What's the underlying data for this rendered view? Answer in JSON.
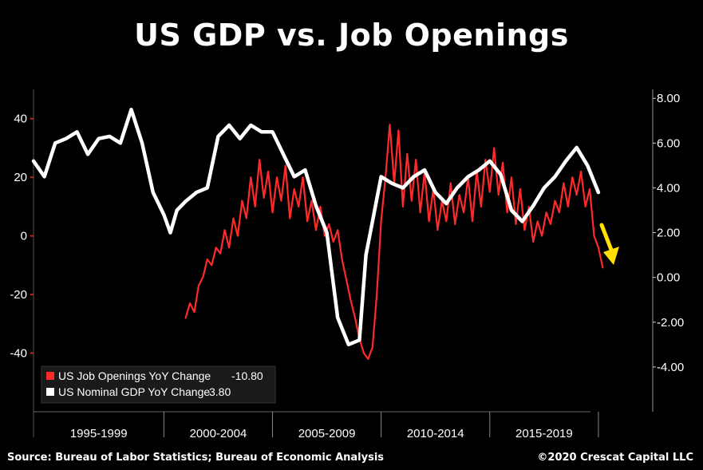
{
  "title": "US GDP vs. Job Openings",
  "footer": {
    "source": "Source: Bureau of Labor Statistics; Bureau of Economic Analysis",
    "copyright": "©2020 Crescat Capital LLC"
  },
  "colors": {
    "background": "#000000",
    "job_openings": "#ff2a2a",
    "gdp": "#ffffff",
    "arrow": "#ffe000"
  },
  "chart_data": {
    "type": "line",
    "title": "US GDP vs. Job Openings",
    "xlabel": "",
    "x_periods": [
      "1995-1999",
      "2000-2004",
      "2005-2009",
      "2010-2014",
      "2015-2019"
    ],
    "xlim": [
      1994.0,
      2022.5
    ],
    "left_axis": {
      "ylim": [
        -60,
        50
      ],
      "ticks": [
        40,
        20,
        0,
        -20,
        -40
      ],
      "tick_labels": [
        "40",
        "20",
        "0",
        "-20",
        "-40"
      ]
    },
    "right_axis": {
      "ylim": [
        -6,
        8.4
      ],
      "ticks": [
        8,
        6,
        4,
        2,
        0,
        -2,
        -4
      ],
      "tick_labels": [
        "8.00",
        "6.00",
        "4.00",
        "2.00",
        "0.00",
        "-2.00",
        "-4.00"
      ]
    },
    "legend_position": "bottom-left",
    "series": [
      {
        "name": "US Job Openings YoY Change",
        "legend_label": "US Job Openings YoY Change",
        "last_value": "-10.80",
        "axis": "left",
        "x": [
          2001.0,
          2001.2,
          2001.4,
          2001.6,
          2001.8,
          2002.0,
          2002.2,
          2002.4,
          2002.6,
          2002.8,
          2003.0,
          2003.2,
          2003.4,
          2003.6,
          2003.8,
          2004.0,
          2004.2,
          2004.4,
          2004.6,
          2004.8,
          2005.0,
          2005.2,
          2005.4,
          2005.6,
          2005.8,
          2006.0,
          2006.2,
          2006.4,
          2006.6,
          2006.8,
          2007.0,
          2007.2,
          2007.4,
          2007.6,
          2007.8,
          2008.0,
          2008.2,
          2008.4,
          2008.6,
          2008.8,
          2009.0,
          2009.2,
          2009.4,
          2009.6,
          2009.8,
          2010.0,
          2010.2,
          2010.4,
          2010.6,
          2010.8,
          2011.0,
          2011.2,
          2011.4,
          2011.6,
          2011.8,
          2012.0,
          2012.2,
          2012.4,
          2012.6,
          2012.8,
          2013.0,
          2013.2,
          2013.4,
          2013.6,
          2013.8,
          2014.0,
          2014.2,
          2014.4,
          2014.6,
          2014.8,
          2015.0,
          2015.2,
          2015.4,
          2015.6,
          2015.8,
          2016.0,
          2016.2,
          2016.4,
          2016.6,
          2016.8,
          2017.0,
          2017.2,
          2017.4,
          2017.6,
          2017.8,
          2018.0,
          2018.2,
          2018.4,
          2018.6,
          2018.8,
          2019.0,
          2019.2,
          2019.4,
          2019.6,
          2019.8,
          2020.0,
          2020.2
        ],
        "values": [
          -28,
          -23,
          -26,
          -17,
          -14,
          -8,
          -10,
          -4,
          -6,
          2,
          -4,
          6,
          0,
          12,
          6,
          20,
          10,
          26,
          13,
          22,
          8,
          20,
          12,
          24,
          6,
          16,
          10,
          20,
          5,
          12,
          2,
          10,
          0,
          4,
          -2,
          2,
          -8,
          -15,
          -22,
          -28,
          -35,
          -40,
          -42,
          -38,
          -20,
          5,
          20,
          38,
          18,
          36,
          10,
          28,
          12,
          26,
          8,
          22,
          5,
          16,
          2,
          12,
          5,
          18,
          4,
          14,
          8,
          20,
          5,
          22,
          10,
          26,
          15,
          30,
          14,
          25,
          8,
          20,
          4,
          16,
          2,
          10,
          -2,
          5,
          0,
          8,
          4,
          12,
          8,
          18,
          10,
          20,
          14,
          22,
          10,
          16,
          0,
          -4,
          -10.8
        ]
      },
      {
        "name": "US Nominal GDP YoY Change",
        "legend_label": "US Nominal GDP YoY Change",
        "last_value": "3.80",
        "axis": "right",
        "x": [
          1994.0,
          1994.5,
          1995.0,
          1995.5,
          1996.0,
          1996.5,
          1997.0,
          1997.5,
          1998.0,
          1998.5,
          1999.0,
          1999.5,
          2000.0,
          2000.3,
          2000.6,
          2001.0,
          2001.5,
          2002.0,
          2002.5,
          2003.0,
          2003.5,
          2004.0,
          2004.5,
          2005.0,
          2005.5,
          2006.0,
          2006.5,
          2007.0,
          2007.5,
          2008.0,
          2008.5,
          2009.0,
          2009.3,
          2009.6,
          2010.0,
          2010.5,
          2011.0,
          2011.5,
          2012.0,
          2012.5,
          2013.0,
          2013.5,
          2014.0,
          2014.5,
          2015.0,
          2015.5,
          2016.0,
          2016.5,
          2017.0,
          2017.5,
          2018.0,
          2018.5,
          2019.0,
          2019.5,
          2020.0
        ],
        "values": [
          5.2,
          4.5,
          6.0,
          6.2,
          6.5,
          5.5,
          6.2,
          6.3,
          6.0,
          7.5,
          6.0,
          3.8,
          2.8,
          2.0,
          3.0,
          3.4,
          3.8,
          4.0,
          6.3,
          6.8,
          6.2,
          6.8,
          6.5,
          6.5,
          5.5,
          4.5,
          4.8,
          3.2,
          2.0,
          -1.8,
          -3.0,
          -2.8,
          1.0,
          2.5,
          4.5,
          4.2,
          4.0,
          4.5,
          4.8,
          3.8,
          3.3,
          4.0,
          4.5,
          4.8,
          5.2,
          4.6,
          3.0,
          2.5,
          3.2,
          4.0,
          4.5,
          5.2,
          5.8,
          5.0,
          3.8
        ]
      }
    ],
    "annotations": [
      {
        "type": "arrow",
        "direction": "down",
        "color": "yellow"
      }
    ]
  }
}
